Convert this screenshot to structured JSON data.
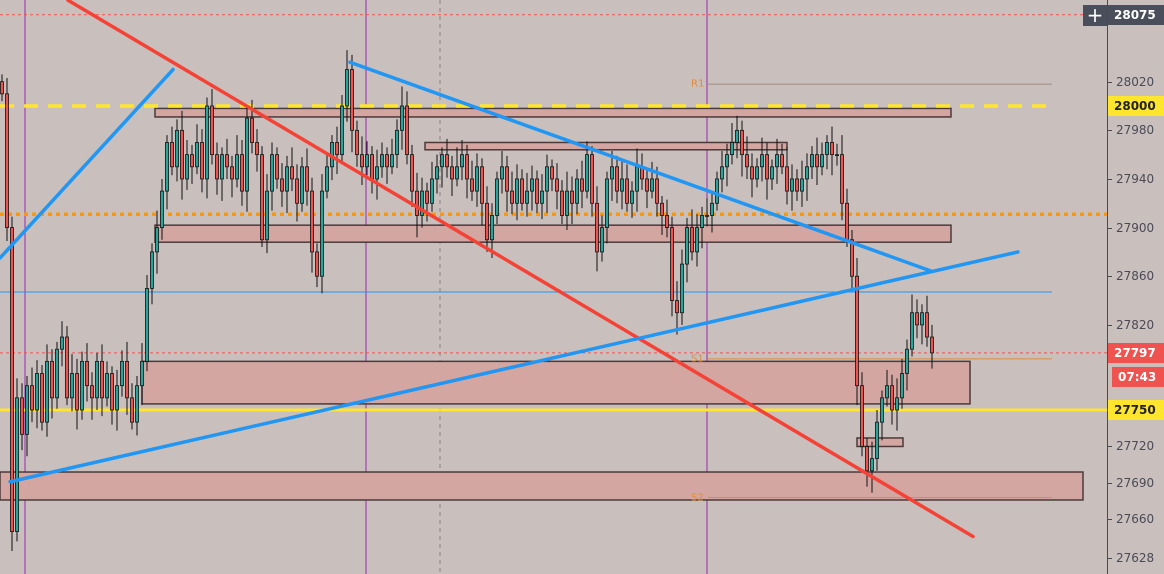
{
  "chart_data": {
    "type": "candlestick",
    "ylim": [
      27615,
      28087
    ],
    "y_ticks": [
      28020,
      27980,
      27940,
      27900,
      27860,
      27820,
      27720,
      27690,
      27660,
      27628
    ],
    "closes": [
      28010,
      27900,
      27650,
      27760,
      27730,
      27770,
      27750,
      27780,
      27740,
      27790,
      27760,
      27800,
      27810,
      27760,
      27780,
      27750,
      27790,
      27770,
      27760,
      27790,
      27760,
      27780,
      27750,
      27770,
      27790,
      27760,
      27740,
      27770,
      27790,
      27850,
      27880,
      27900,
      27930,
      27970,
      27950,
      27980,
      27940,
      27960,
      27950,
      27970,
      27940,
      28000,
      27960,
      27940,
      27960,
      27950,
      27940,
      27960,
      27930,
      27990,
      27970,
      27960,
      27890,
      27930,
      27960,
      27940,
      27930,
      27950,
      27940,
      27920,
      27950,
      27930,
      27880,
      27860,
      27930,
      27950,
      27970,
      27960,
      28000,
      28030,
      27980,
      27960,
      27950,
      27960,
      27940,
      27950,
      27960,
      27950,
      27960,
      27980,
      28000,
      27960,
      27930,
      27910,
      27930,
      27920,
      27940,
      27950,
      27960,
      27950,
      27940,
      27950,
      27960,
      27940,
      27930,
      27950,
      27920,
      27890,
      27910,
      27940,
      27950,
      27930,
      27920,
      27940,
      27920,
      27930,
      27940,
      27920,
      27930,
      27950,
      27940,
      27930,
      27910,
      27930,
      27920,
      27940,
      27930,
      27960,
      27920,
      27880,
      27900,
      27940,
      27950,
      27930,
      27940,
      27920,
      27930,
      27950,
      27940,
      27930,
      27940,
      27920,
      27910,
      27900,
      27840,
      27830,
      27870,
      27900,
      27880,
      27900,
      27910,
      27910,
      27920,
      27940,
      27950,
      27960,
      27970,
      27980,
      27960,
      27950,
      27940,
      27950,
      27960,
      27940,
      27950,
      27960,
      27950,
      27930,
      27940,
      27930,
      27940,
      27950,
      27960,
      27950,
      27960,
      27970,
      27960,
      27960,
      27920,
      27890,
      27860,
      27770,
      27720,
      27700,
      27710,
      27740,
      27760,
      27770,
      27750,
      27760,
      27780,
      27800,
      27830,
      27820,
      27830,
      27810,
      27797
    ],
    "colors": {
      "up": "#26a69a",
      "down": "#ef5350",
      "background": "#c9c0be"
    },
    "horizontal_levels": [
      {
        "price": 28075,
        "style": "dotted",
        "color": "#ef5350"
      },
      {
        "price": 28000,
        "style": "dashed",
        "color": "#ffe52e"
      },
      {
        "price": 27911,
        "style": "dotted",
        "color": "#ff9800"
      },
      {
        "price": 27847,
        "style": "solid",
        "color": "#2196f3"
      },
      {
        "price": 27797,
        "style": "dotted",
        "color": "#ef5350"
      },
      {
        "price": 27750,
        "style": "solid",
        "color": "#ffe52e"
      }
    ],
    "pivots": [
      {
        "label": "R1",
        "price": 28018
      },
      {
        "label": "S1",
        "price": 27792
      },
      {
        "label": "S2",
        "price": 27678
      }
    ],
    "zones": [
      {
        "from_index": 30.6,
        "to_index": 189.8,
        "top": 27998,
        "bottom": 27991
      },
      {
        "from_index": 84.6,
        "to_index": 157,
        "top": 27970,
        "bottom": 27964
      },
      {
        "from_index": 30.6,
        "to_index": 189.8,
        "top": 27902,
        "bottom": 27888
      },
      {
        "from_index": 28,
        "to_index": 193.6,
        "top": 27790,
        "bottom": 27755
      },
      {
        "from_index": 171,
        "to_index": 180.2,
        "top": 27727,
        "bottom": 27720
      },
      {
        "from_index": -0.4,
        "to_index": 216.2,
        "top": 27699,
        "bottom": 27676
      }
    ],
    "trendlines": [
      {
        "color": "#f44336",
        "p1": [
          13.2,
          28087
        ],
        "p2": [
          194.2,
          27646
        ]
      },
      {
        "color": "#2196f3",
        "p1": [
          -0.4,
          27875
        ],
        "p2": [
          34.2,
          28030
        ]
      },
      {
        "color": "#2196f3",
        "p1": [
          69.6,
          28036
        ],
        "p2": [
          186,
          27864
        ]
      },
      {
        "color": "#2196f3",
        "p1": [
          1.6,
          27691
        ],
        "p2": [
          203.2,
          27880
        ]
      }
    ],
    "session_lines": [
      4.6,
      72.8,
      141
    ],
    "last_price": {
      "price": 27797,
      "label": "27797",
      "countdown": "07:43"
    },
    "level_badges": [
      {
        "price": 28000,
        "label": "28000"
      },
      {
        "price": 27750,
        "label": "27750"
      }
    ],
    "top_badge": {
      "price": 28075,
      "label": "28075"
    }
  }
}
